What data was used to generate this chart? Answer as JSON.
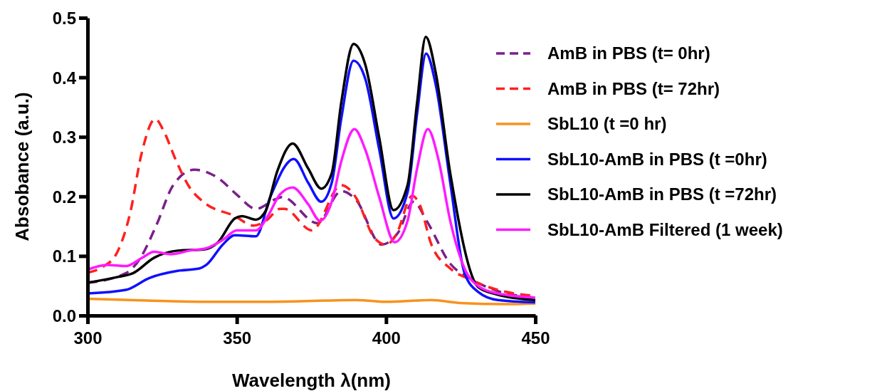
{
  "chart_data": {
    "type": "line",
    "xlabel": "Wavelength λ(nm)",
    "ylabel": "Absobance (a.u.)",
    "xlim": [
      300,
      450
    ],
    "xticks": [
      300,
      350,
      400,
      450
    ],
    "ylim": [
      0,
      0.5
    ],
    "yticks": [
      {
        "value": 0,
        "label": "0.0"
      },
      {
        "value": 0.1,
        "label": "0.1"
      },
      {
        "value": 0.2,
        "label": "0.2"
      },
      {
        "value": 0.3,
        "label": "0.3"
      },
      {
        "value": 0.4,
        "label": "0.4"
      },
      {
        "value": 0.5,
        "label": "0.5"
      }
    ],
    "grid": false,
    "legend": "right",
    "marker": "none",
    "series": [
      {
        "name": "AmB in PBS (t= 0hr)",
        "color": "#7b1f8a",
        "line_style": "dashed",
        "x": [
          300,
          312.8,
          317.5,
          323,
          328.7,
          335.8,
          343.7,
          350,
          356.4,
          362.8,
          365.2,
          377,
          385,
          389.8,
          398.5,
          404,
          409.2,
          413.6,
          421.5,
          427.9,
          437.4,
          450
        ],
        "values": [
          0.055,
          0.071,
          0.095,
          0.151,
          0.219,
          0.245,
          0.231,
          0.203,
          0.179,
          0.195,
          0.199,
          0.155,
          0.209,
          0.195,
          0.119,
          0.139,
          0.191,
          0.159,
          0.087,
          0.063,
          0.041,
          0.03
        ]
      },
      {
        "name": "AmB in PBS (t= 72hr)",
        "color": "#ff2020",
        "line_style": "dashed",
        "x": [
          300,
          304.8,
          309.6,
          314.4,
          318,
          322.7,
          325.5,
          329.4,
          334.2,
          339,
          349.3,
          355.6,
          360,
          364.4,
          366,
          375.1,
          385,
          389.8,
          396,
          400,
          403.3,
          408.8,
          411.2,
          415.2,
          421.5,
          427.9,
          437.4,
          450
        ],
        "values": [
          0.072,
          0.081,
          0.103,
          0.175,
          0.27,
          0.33,
          0.31,
          0.263,
          0.215,
          0.19,
          0.167,
          0.151,
          0.16,
          0.179,
          0.179,
          0.143,
          0.219,
          0.199,
          0.131,
          0.119,
          0.135,
          0.201,
          0.187,
          0.119,
          0.079,
          0.061,
          0.043,
          0.033
        ]
      },
      {
        "name": "SbL10 (t =0 hr)",
        "color": "#f7931e",
        "line_style": "solid",
        "x": [
          300,
          320,
          340,
          360,
          380,
          390,
          400,
          410,
          415,
          425,
          440,
          450
        ],
        "values": [
          0.028,
          0.025,
          0.023,
          0.023,
          0.025,
          0.026,
          0.023,
          0.025,
          0.026,
          0.021,
          0.019,
          0.02
        ]
      },
      {
        "name": "SbL10-AmB in PBS (t =0hr)",
        "color": "#1010ff",
        "line_style": "solid",
        "x": [
          300,
          312.8,
          320.7,
          330.2,
          337.4,
          339.8,
          345.3,
          349.3,
          356.4,
          361.2,
          369.1,
          373.9,
          378.3,
          381.8,
          385,
          389.1,
          393,
          397.7,
          402.5,
          407.2,
          410.4,
          413.4,
          416.7,
          421.5,
          426.3,
          431,
          437.4,
          450
        ],
        "values": [
          0.037,
          0.043,
          0.063,
          0.075,
          0.079,
          0.085,
          0.119,
          0.135,
          0.133,
          0.199,
          0.263,
          0.223,
          0.191,
          0.223,
          0.331,
          0.428,
          0.398,
          0.279,
          0.163,
          0.207,
          0.339,
          0.44,
          0.386,
          0.223,
          0.071,
          0.039,
          0.026,
          0.022
        ]
      },
      {
        "name": "SbL10-AmB in PBS (t =72hr)",
        "color": "#000000",
        "line_style": "solid",
        "x": [
          300,
          310.4,
          315.2,
          322.3,
          330.2,
          339,
          343.7,
          349.3,
          351.7,
          356.4,
          359.6,
          363.6,
          368.7,
          373.9,
          378.3,
          381.8,
          385,
          389.1,
          393,
          397.7,
          402.5,
          407.2,
          410.4,
          413.3,
          416.7,
          421.5,
          431,
          437.4,
          450
        ],
        "values": [
          0.055,
          0.065,
          0.071,
          0.097,
          0.109,
          0.111,
          0.123,
          0.163,
          0.167,
          0.161,
          0.175,
          0.243,
          0.289,
          0.247,
          0.213,
          0.239,
          0.358,
          0.456,
          0.422,
          0.299,
          0.177,
          0.219,
          0.358,
          0.468,
          0.406,
          0.239,
          0.047,
          0.035,
          0.026
        ]
      },
      {
        "name": "SbL10-AmB Filtered (1 week)",
        "color": "#ff1aff",
        "line_style": "solid",
        "x": [
          300,
          306.4,
          312.8,
          318.3,
          322.3,
          327.9,
          334.2,
          339.8,
          345.3,
          350,
          356.4,
          360.4,
          364.4,
          368.7,
          373.9,
          377.9,
          381.8,
          385,
          389.4,
          393,
          397.7,
          402.9,
          407.2,
          410.4,
          414,
          417.5,
          421.5,
          426.3,
          431,
          437.4,
          450
        ],
        "values": [
          0.077,
          0.085,
          0.083,
          0.097,
          0.107,
          0.103,
          0.109,
          0.113,
          0.127,
          0.143,
          0.143,
          0.167,
          0.203,
          0.215,
          0.187,
          0.159,
          0.191,
          0.259,
          0.313,
          0.279,
          0.199,
          0.123,
          0.159,
          0.247,
          0.313,
          0.263,
          0.159,
          0.079,
          0.049,
          0.037,
          0.03
        ]
      }
    ]
  }
}
